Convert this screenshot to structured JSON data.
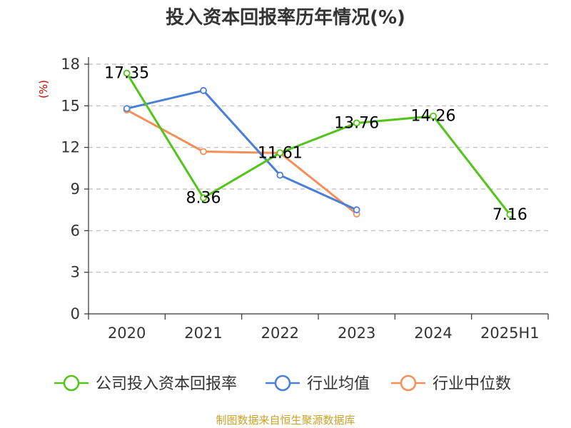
{
  "chart_data": {
    "type": "line",
    "title": "投入资本回报率历年情况(%)",
    "ylabel": "(%)",
    "xlabel": "",
    "categories": [
      "2020",
      "2021",
      "2022",
      "2023",
      "2024",
      "2025H1"
    ],
    "ylim": [
      0,
      18
    ],
    "yticks": [
      0,
      3,
      6,
      9,
      12,
      15,
      18
    ],
    "grid": true,
    "legend_position": "bottom",
    "series": [
      {
        "name": "公司投入资本回报率",
        "color": "#52c41a",
        "values": [
          17.35,
          8.36,
          11.61,
          13.76,
          14.26,
          7.16
        ],
        "labels": [
          "17.35",
          "8.36",
          "11.61",
          "13.76",
          "14.26",
          "7.16"
        ]
      },
      {
        "name": "行业均值",
        "color": "#4a7fd9",
        "values": [
          14.8,
          16.1,
          10.0,
          7.5,
          null,
          null
        ]
      },
      {
        "name": "行业中位数",
        "color": "#f58f5a",
        "values": [
          14.7,
          11.7,
          11.6,
          7.2,
          null,
          null
        ]
      }
    ]
  },
  "source_note": "制图数据来自恒生聚源数据库"
}
